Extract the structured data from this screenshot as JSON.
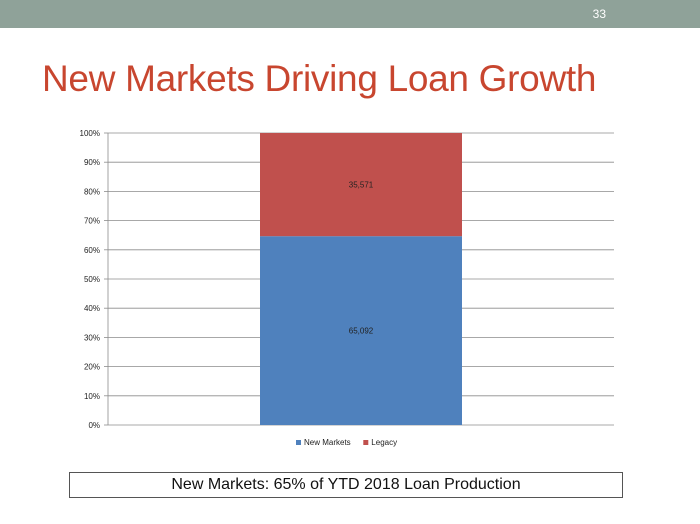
{
  "slide": {
    "number": "33",
    "title": "New Markets Driving Loan Growth"
  },
  "caption": "New Markets:  65% of YTD 2018 Loan Production",
  "colors": {
    "topbar": "#8fa299",
    "title": "#c8462f",
    "new_markets": "#4f81bd",
    "legacy": "#c0504d"
  },
  "chart_data": {
    "type": "bar",
    "stacked": "percent",
    "categories": [
      ""
    ],
    "series": [
      {
        "name": "New Markets",
        "values": [
          65092
        ],
        "labels": [
          "65,092"
        ],
        "color": "#4f81bd"
      },
      {
        "name": "Legacy",
        "values": [
          35571
        ],
        "labels": [
          "35,571"
        ],
        "color": "#c0504d"
      }
    ],
    "ylim": [
      0,
      100
    ],
    "yticks": [
      "0%",
      "10%",
      "20%",
      "30%",
      "40%",
      "50%",
      "60%",
      "70%",
      "80%",
      "90%",
      "100%"
    ],
    "grid": true,
    "legend": "bottom"
  }
}
